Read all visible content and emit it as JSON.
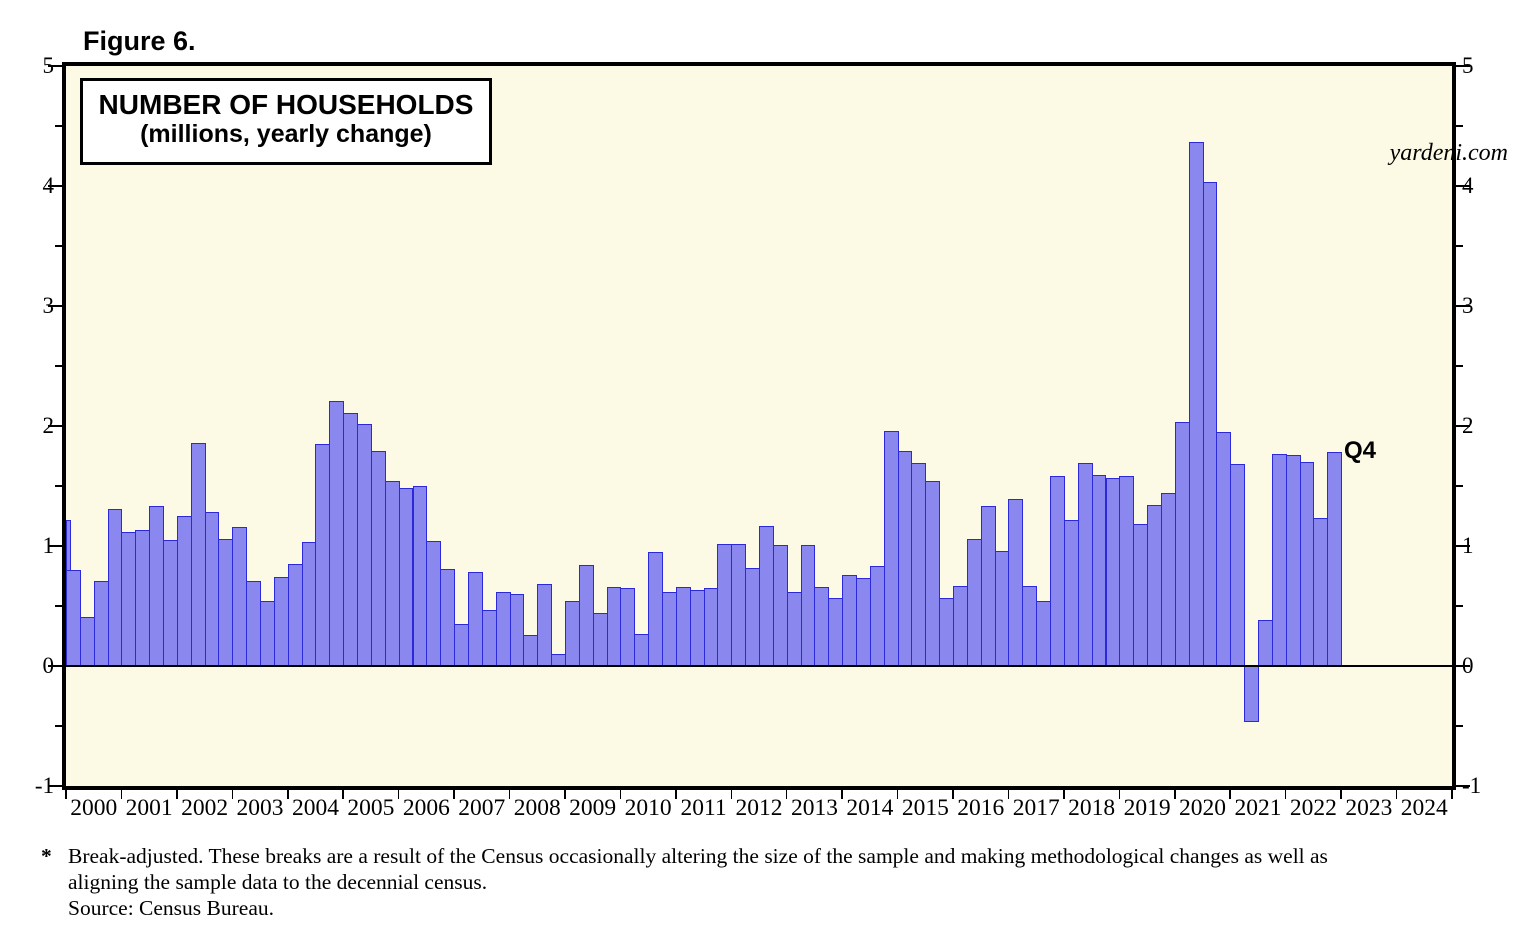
{
  "figure_label": "Figure 6.",
  "watermark": "yardeni.com",
  "annotation_last_bar": "Q4",
  "footnote": {
    "marker": "*",
    "lines": [
      "Break-adjusted. These breaks are a result of the Census occasionally altering the size of the sample and making methodological changes as well as",
      "aligning the sample data to the decennial census.",
      "Source: Census Bureau."
    ]
  },
  "chart_data": {
    "type": "bar",
    "title": "NUMBER OF HOUSEHOLDS",
    "subtitle": "(millions, yearly change)",
    "ylabel": "millions, yearly change",
    "ylim": [
      -1,
      5
    ],
    "yticks": [
      -1,
      0,
      1,
      2,
      3,
      4,
      5
    ],
    "y_minor_step": 0.5,
    "grid": false,
    "legend_position": "none",
    "x_axis_years": [
      2000,
      2001,
      2002,
      2003,
      2004,
      2005,
      2006,
      2007,
      2008,
      2009,
      2010,
      2011,
      2012,
      2013,
      2014,
      2015,
      2016,
      2017,
      2018,
      2019,
      2020,
      2021,
      2022,
      2023,
      2024
    ],
    "partial_first_bar": {
      "year": 1999,
      "quarter": "Q4",
      "value": 1.22
    },
    "values": [
      {
        "year": 2000,
        "q": [
          0.8,
          0.41,
          0.71,
          1.31
        ]
      },
      {
        "year": 2001,
        "q": [
          1.12,
          1.13,
          1.33,
          1.05
        ]
      },
      {
        "year": 2002,
        "q": [
          1.25,
          1.86,
          1.28,
          1.06
        ]
      },
      {
        "year": 2003,
        "q": [
          1.16,
          0.71,
          0.54,
          0.74
        ]
      },
      {
        "year": 2004,
        "q": [
          0.85,
          1.03,
          1.85,
          2.21
        ]
      },
      {
        "year": 2005,
        "q": [
          2.11,
          2.02,
          1.79,
          1.54
        ]
      },
      {
        "year": 2006,
        "q": [
          1.48,
          1.5,
          1.04,
          0.81
        ]
      },
      {
        "year": 2007,
        "q": [
          0.35,
          0.78,
          0.47,
          0.62
        ]
      },
      {
        "year": 2008,
        "q": [
          0.6,
          0.26,
          0.68,
          0.1
        ]
      },
      {
        "year": 2009,
        "q": [
          0.54,
          0.84,
          0.44,
          0.66
        ]
      },
      {
        "year": 2010,
        "q": [
          0.65,
          0.27,
          0.95,
          0.62
        ]
      },
      {
        "year": 2011,
        "q": [
          0.66,
          0.63,
          0.65,
          1.02
        ]
      },
      {
        "year": 2012,
        "q": [
          1.02,
          0.82,
          1.17,
          1.01
        ]
      },
      {
        "year": 2013,
        "q": [
          0.62,
          1.01,
          0.66,
          0.57
        ]
      },
      {
        "year": 2014,
        "q": [
          0.76,
          0.73,
          0.83,
          1.96
        ]
      },
      {
        "year": 2015,
        "q": [
          1.79,
          1.69,
          1.54,
          0.57
        ]
      },
      {
        "year": 2016,
        "q": [
          0.67,
          1.06,
          1.33,
          0.96
        ]
      },
      {
        "year": 2017,
        "q": [
          1.39,
          0.67,
          0.54,
          1.58
        ]
      },
      {
        "year": 2018,
        "q": [
          1.22,
          1.69,
          1.59,
          1.57
        ]
      },
      {
        "year": 2019,
        "q": [
          1.58,
          1.18,
          1.34,
          1.44
        ]
      },
      {
        "year": 2020,
        "q": [
          2.03,
          4.37,
          4.03,
          1.95
        ]
      },
      {
        "year": 2021,
        "q": [
          1.68,
          -0.47,
          0.38,
          1.77
        ]
      },
      {
        "year": 2022,
        "q": [
          1.76,
          1.7,
          1.23,
          1.78
        ]
      }
    ],
    "colors": {
      "bar_fill": "#8a88ef",
      "bar_border": "#2b29d9",
      "plot_background": "#fcfae5",
      "axis": "#000000",
      "text": "#000000"
    }
  }
}
